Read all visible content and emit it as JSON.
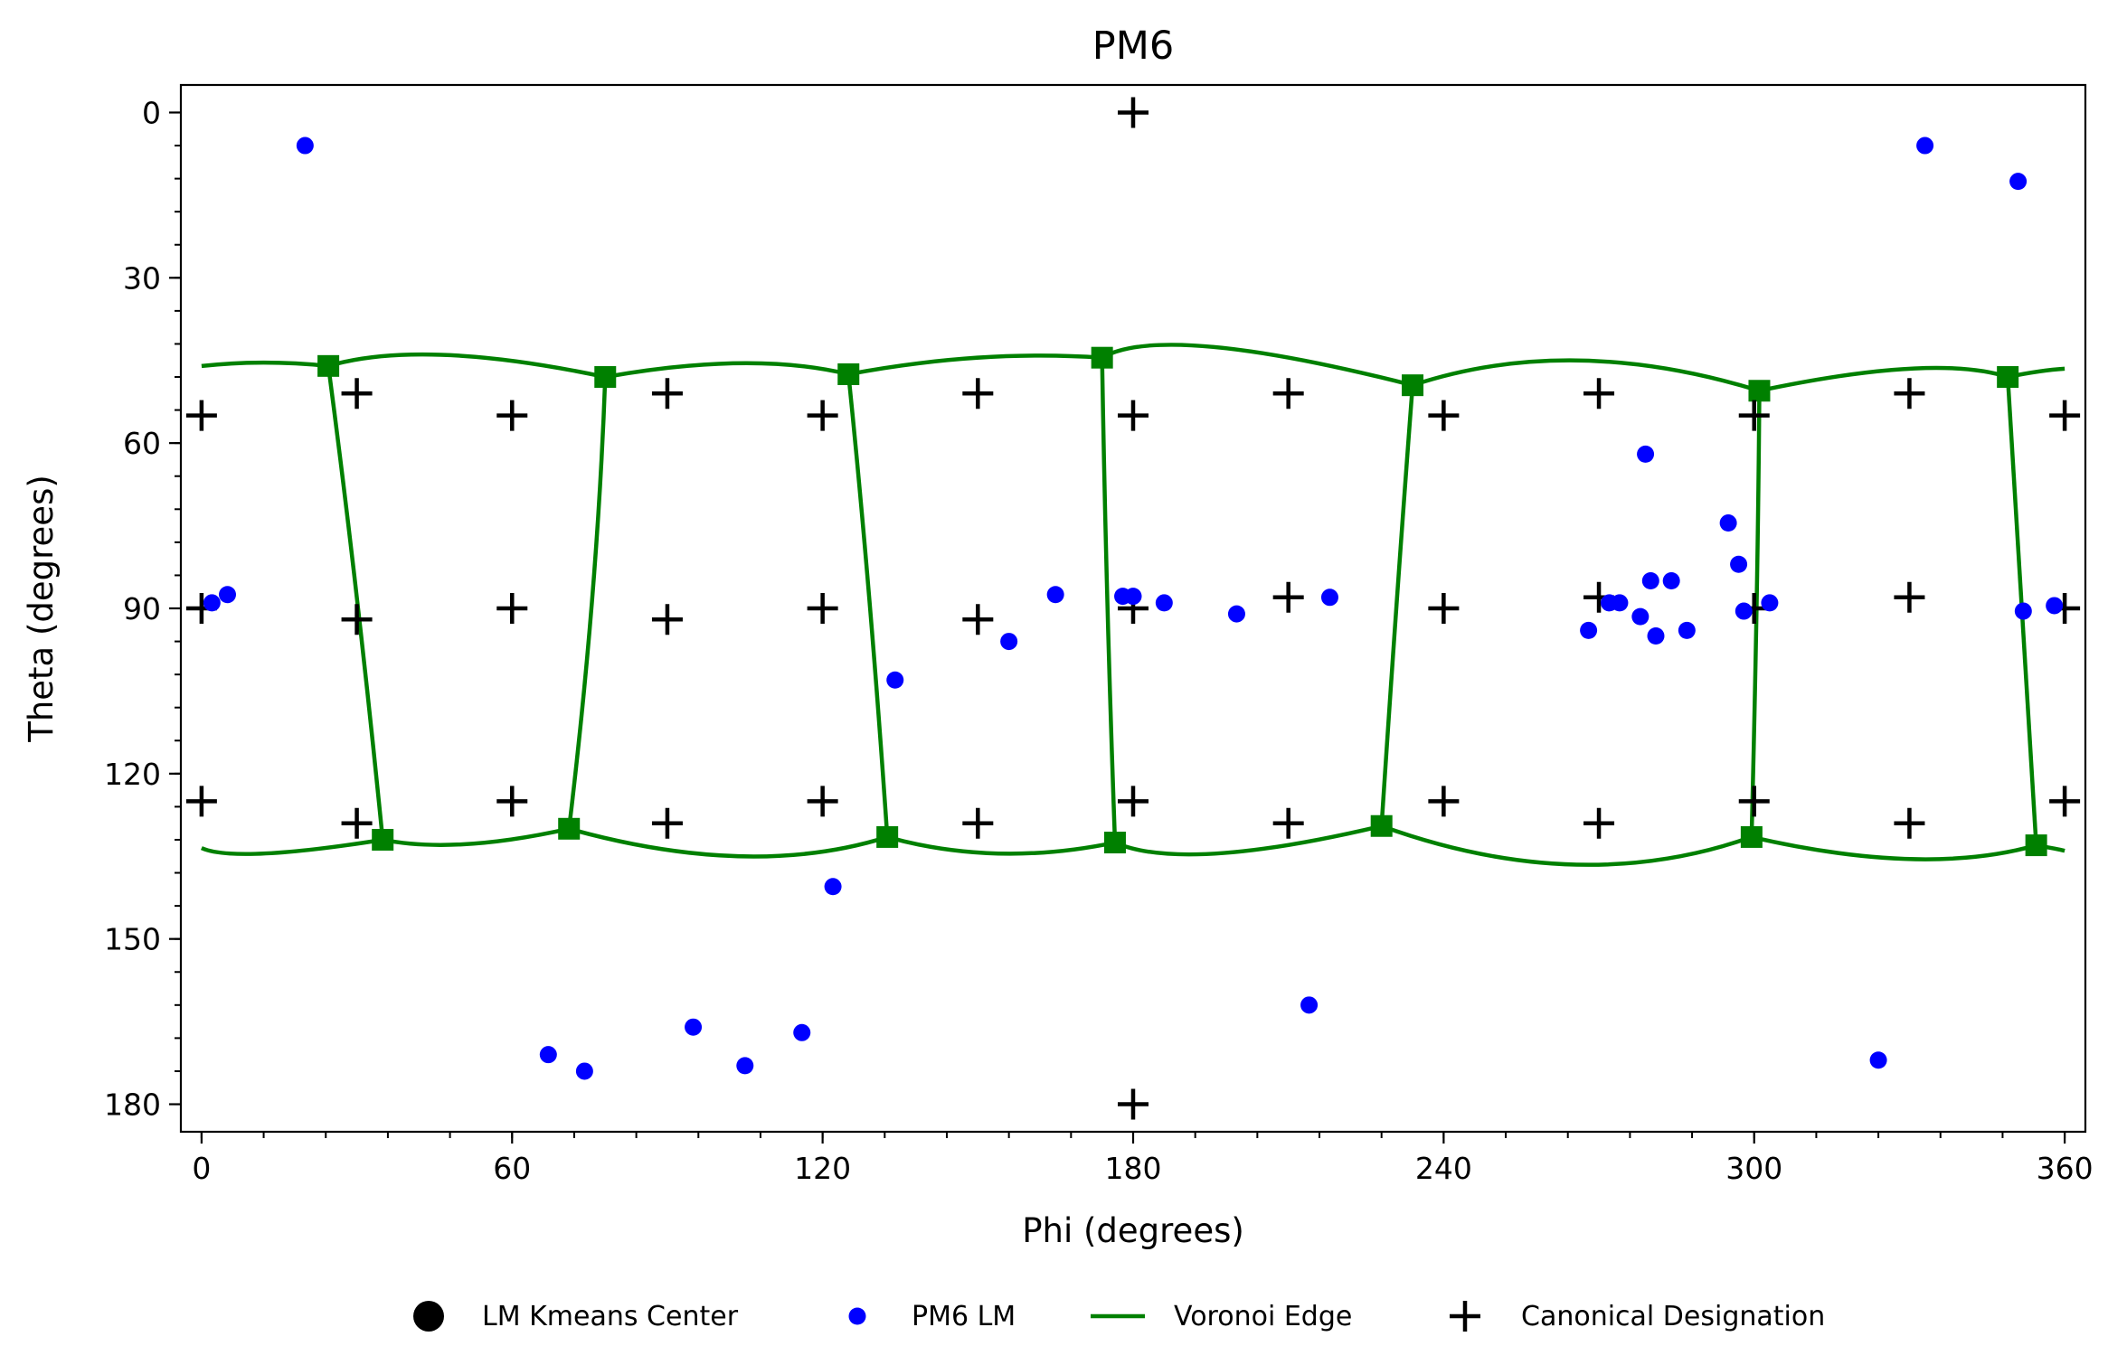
{
  "chart_data": {
    "type": "scatter",
    "title": "PM6",
    "xlabel": "Phi (degrees)",
    "ylabel": "Theta (degrees)",
    "xlim": [
      -4,
      364
    ],
    "ylim": [
      -5,
      185
    ],
    "y_inverted": true,
    "grid": false,
    "x_ticks": [
      0,
      60,
      120,
      180,
      240,
      300,
      360
    ],
    "y_ticks": [
      0,
      30,
      60,
      90,
      120,
      150,
      180
    ],
    "x_tick_labels": [
      "0",
      "60",
      "120",
      "180",
      "240",
      "300",
      "360"
    ],
    "y_tick_labels": [
      "0",
      "30",
      "60",
      "90",
      "120",
      "150",
      "180"
    ],
    "x_minor_step": 12,
    "y_minor_step": 6,
    "legend_placement": "bottom-center, below plot",
    "colors": {
      "kmeans": "#000000",
      "lm": "#0000ff",
      "voronoi": "#008000",
      "canonical": "#000000"
    },
    "legend": [
      {
        "key": "kmeans",
        "label": "LM Kmeans Center",
        "marker": "large-circle"
      },
      {
        "key": "lm",
        "label": "PM6 LM",
        "marker": "small-circle"
      },
      {
        "key": "voronoi",
        "label": "Voronoi Edge",
        "marker": "line"
      },
      {
        "key": "canonical",
        "label": "Canonical Designation",
        "marker": "plus"
      }
    ],
    "series": [
      {
        "name": "PM6 LM",
        "key": "lm",
        "points": [
          [
            20,
            6
          ],
          [
            333,
            6
          ],
          [
            351,
            12.5
          ],
          [
            2,
            89
          ],
          [
            5,
            87.5
          ],
          [
            134,
            103
          ],
          [
            156,
            96
          ],
          [
            165,
            87.5
          ],
          [
            178,
            87.8
          ],
          [
            180,
            87.8
          ],
          [
            186,
            89
          ],
          [
            200,
            91
          ],
          [
            218,
            88
          ],
          [
            268,
            94
          ],
          [
            272,
            89
          ],
          [
            274,
            89
          ],
          [
            278,
            91.5
          ],
          [
            279,
            62
          ],
          [
            280,
            85
          ],
          [
            281,
            95
          ],
          [
            284,
            85
          ],
          [
            287,
            94
          ],
          [
            295,
            74.5
          ],
          [
            297,
            82
          ],
          [
            298,
            90.5
          ],
          [
            303,
            89
          ],
          [
            352,
            90.5
          ],
          [
            358,
            89.5
          ],
          [
            67,
            171
          ],
          [
            74,
            174
          ],
          [
            95,
            166
          ],
          [
            105,
            173
          ],
          [
            116,
            167
          ],
          [
            122,
            140.5
          ],
          [
            214,
            162
          ],
          [
            324,
            172
          ]
        ]
      },
      {
        "name": "Canonical Designation",
        "key": "canonical",
        "points": [
          [
            180,
            0
          ],
          [
            180,
            180
          ],
          [
            0,
            55
          ],
          [
            30,
            51
          ],
          [
            60,
            55
          ],
          [
            90,
            51
          ],
          [
            120,
            55
          ],
          [
            150,
            51
          ],
          [
            180,
            55
          ],
          [
            210,
            51
          ],
          [
            240,
            55
          ],
          [
            270,
            51
          ],
          [
            300,
            55
          ],
          [
            330,
            51
          ],
          [
            360,
            55
          ],
          [
            0,
            90
          ],
          [
            30,
            92
          ],
          [
            60,
            90
          ],
          [
            90,
            92
          ],
          [
            120,
            90
          ],
          [
            150,
            92
          ],
          [
            180,
            90
          ],
          [
            210,
            88
          ],
          [
            240,
            90
          ],
          [
            270,
            88
          ],
          [
            300,
            90
          ],
          [
            330,
            88
          ],
          [
            360,
            90
          ],
          [
            0,
            125
          ],
          [
            30,
            129
          ],
          [
            60,
            125
          ],
          [
            90,
            129
          ],
          [
            120,
            125
          ],
          [
            150,
            129
          ],
          [
            180,
            125
          ],
          [
            210,
            129
          ],
          [
            240,
            125
          ],
          [
            270,
            129
          ],
          [
            300,
            125
          ],
          [
            330,
            129
          ],
          [
            360,
            125
          ]
        ]
      }
    ],
    "voronoi_edges": [
      [
        [
          0,
          46
        ],
        [
          12,
          45.4
        ],
        [
          24.5,
          46
        ]
      ],
      [
        [
          24.5,
          46
        ],
        [
          47,
          44
        ],
        [
          78,
          48
        ]
      ],
      [
        [
          78,
          48
        ],
        [
          104,
          45.5
        ],
        [
          125,
          47.5
        ]
      ],
      [
        [
          125,
          47.5
        ],
        [
          150,
          44.5
        ],
        [
          174,
          44.5
        ]
      ],
      [
        [
          174,
          44.5
        ],
        [
          195,
          42.5
        ],
        [
          234,
          49.5
        ]
      ],
      [
        [
          234,
          49.5
        ],
        [
          266,
          45
        ],
        [
          301,
          50.5
        ]
      ],
      [
        [
          301,
          50.5
        ],
        [
          330,
          46.5
        ],
        [
          349,
          48
        ]
      ],
      [
        [
          349,
          48
        ],
        [
          355,
          47
        ],
        [
          360,
          46.5
        ]
      ],
      [
        [
          24.5,
          46
        ],
        [
          30,
          88
        ],
        [
          35,
          132
        ]
      ],
      [
        [
          78,
          48
        ],
        [
          75.5,
          88
        ],
        [
          71,
          130
        ]
      ],
      [
        [
          125,
          47.5
        ],
        [
          129,
          88
        ],
        [
          132.5,
          131.5
        ]
      ],
      [
        [
          174,
          44.5
        ],
        [
          175,
          88
        ],
        [
          176.5,
          132.5
        ]
      ],
      [
        [
          234,
          49.5
        ],
        [
          231,
          88
        ],
        [
          228,
          129.5
        ]
      ],
      [
        [
          301,
          50.5
        ],
        [
          300.5,
          88
        ],
        [
          299.5,
          131.5
        ]
      ],
      [
        [
          349,
          48
        ],
        [
          351.5,
          88
        ],
        [
          354.5,
          133
        ]
      ],
      [
        [
          0,
          133.5
        ],
        [
          12,
          134.5
        ],
        [
          35,
          132
        ]
      ],
      [
        [
          35,
          132
        ],
        [
          51,
          132.8
        ],
        [
          71,
          130
        ]
      ],
      [
        [
          71,
          130
        ],
        [
          104,
          135
        ],
        [
          132.5,
          131.5
        ]
      ],
      [
        [
          132.5,
          131.5
        ],
        [
          154,
          134.5
        ],
        [
          176.5,
          132.5
        ]
      ],
      [
        [
          176.5,
          132.5
        ],
        [
          196,
          134.5
        ],
        [
          228,
          129.5
        ]
      ],
      [
        [
          228,
          129.5
        ],
        [
          265,
          136.5
        ],
        [
          299.5,
          131.5
        ]
      ],
      [
        [
          299.5,
          131.5
        ],
        [
          330,
          135.5
        ],
        [
          354.5,
          133
        ]
      ],
      [
        [
          354.5,
          133
        ],
        [
          358,
          133.6
        ],
        [
          360,
          134
        ]
      ]
    ],
    "voronoi_vertices": [
      [
        24.5,
        46
      ],
      [
        78,
        48
      ],
      [
        125,
        47.5
      ],
      [
        174,
        44.5
      ],
      [
        234,
        49.5
      ],
      [
        301,
        50.5
      ],
      [
        349,
        48
      ],
      [
        35,
        132
      ],
      [
        71,
        130
      ],
      [
        132.5,
        131.5
      ],
      [
        176.5,
        132.5
      ],
      [
        228,
        129.5
      ],
      [
        299.5,
        131.5
      ],
      [
        354.5,
        133
      ]
    ]
  }
}
